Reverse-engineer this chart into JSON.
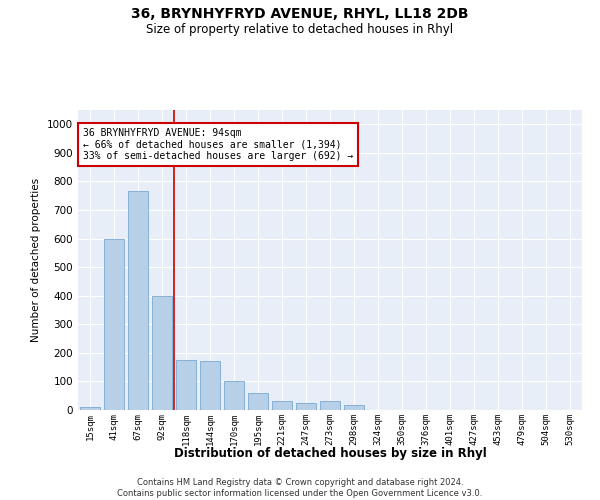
{
  "title": "36, BRYNHYFRYD AVENUE, RHYL, LL18 2DB",
  "subtitle": "Size of property relative to detached houses in Rhyl",
  "xlabel": "Distribution of detached houses by size in Rhyl",
  "ylabel": "Number of detached properties",
  "footnote": "Contains HM Land Registry data © Crown copyright and database right 2024.\nContains public sector information licensed under the Open Government Licence v3.0.",
  "bar_labels": [
    "15sqm",
    "41sqm",
    "67sqm",
    "92sqm",
    "118sqm",
    "144sqm",
    "170sqm",
    "195sqm",
    "221sqm",
    "247sqm",
    "273sqm",
    "298sqm",
    "324sqm",
    "350sqm",
    "376sqm",
    "401sqm",
    "427sqm",
    "453sqm",
    "479sqm",
    "504sqm",
    "530sqm"
  ],
  "bar_values": [
    12,
    600,
    765,
    400,
    175,
    170,
    100,
    60,
    30,
    25,
    30,
    18,
    0,
    0,
    0,
    0,
    0,
    0,
    0,
    0,
    0
  ],
  "bar_color": "#b8cfe8",
  "bar_edge_color": "#7aaad0",
  "bg_color": "#e8eef7",
  "grid_color": "#ffffff",
  "property_line_x": 3.5,
  "property_line_color": "#cc0000",
  "annotation_text": "36 BRYNHYFRYD AVENUE: 94sqm\n← 66% of detached houses are smaller (1,394)\n33% of semi-detached houses are larger (692) →",
  "annotation_box_color": "#cc0000",
  "ylim": [
    0,
    1050
  ],
  "yticks": [
    0,
    100,
    200,
    300,
    400,
    500,
    600,
    700,
    800,
    900,
    1000
  ],
  "fig_facecolor": "#ffffff"
}
